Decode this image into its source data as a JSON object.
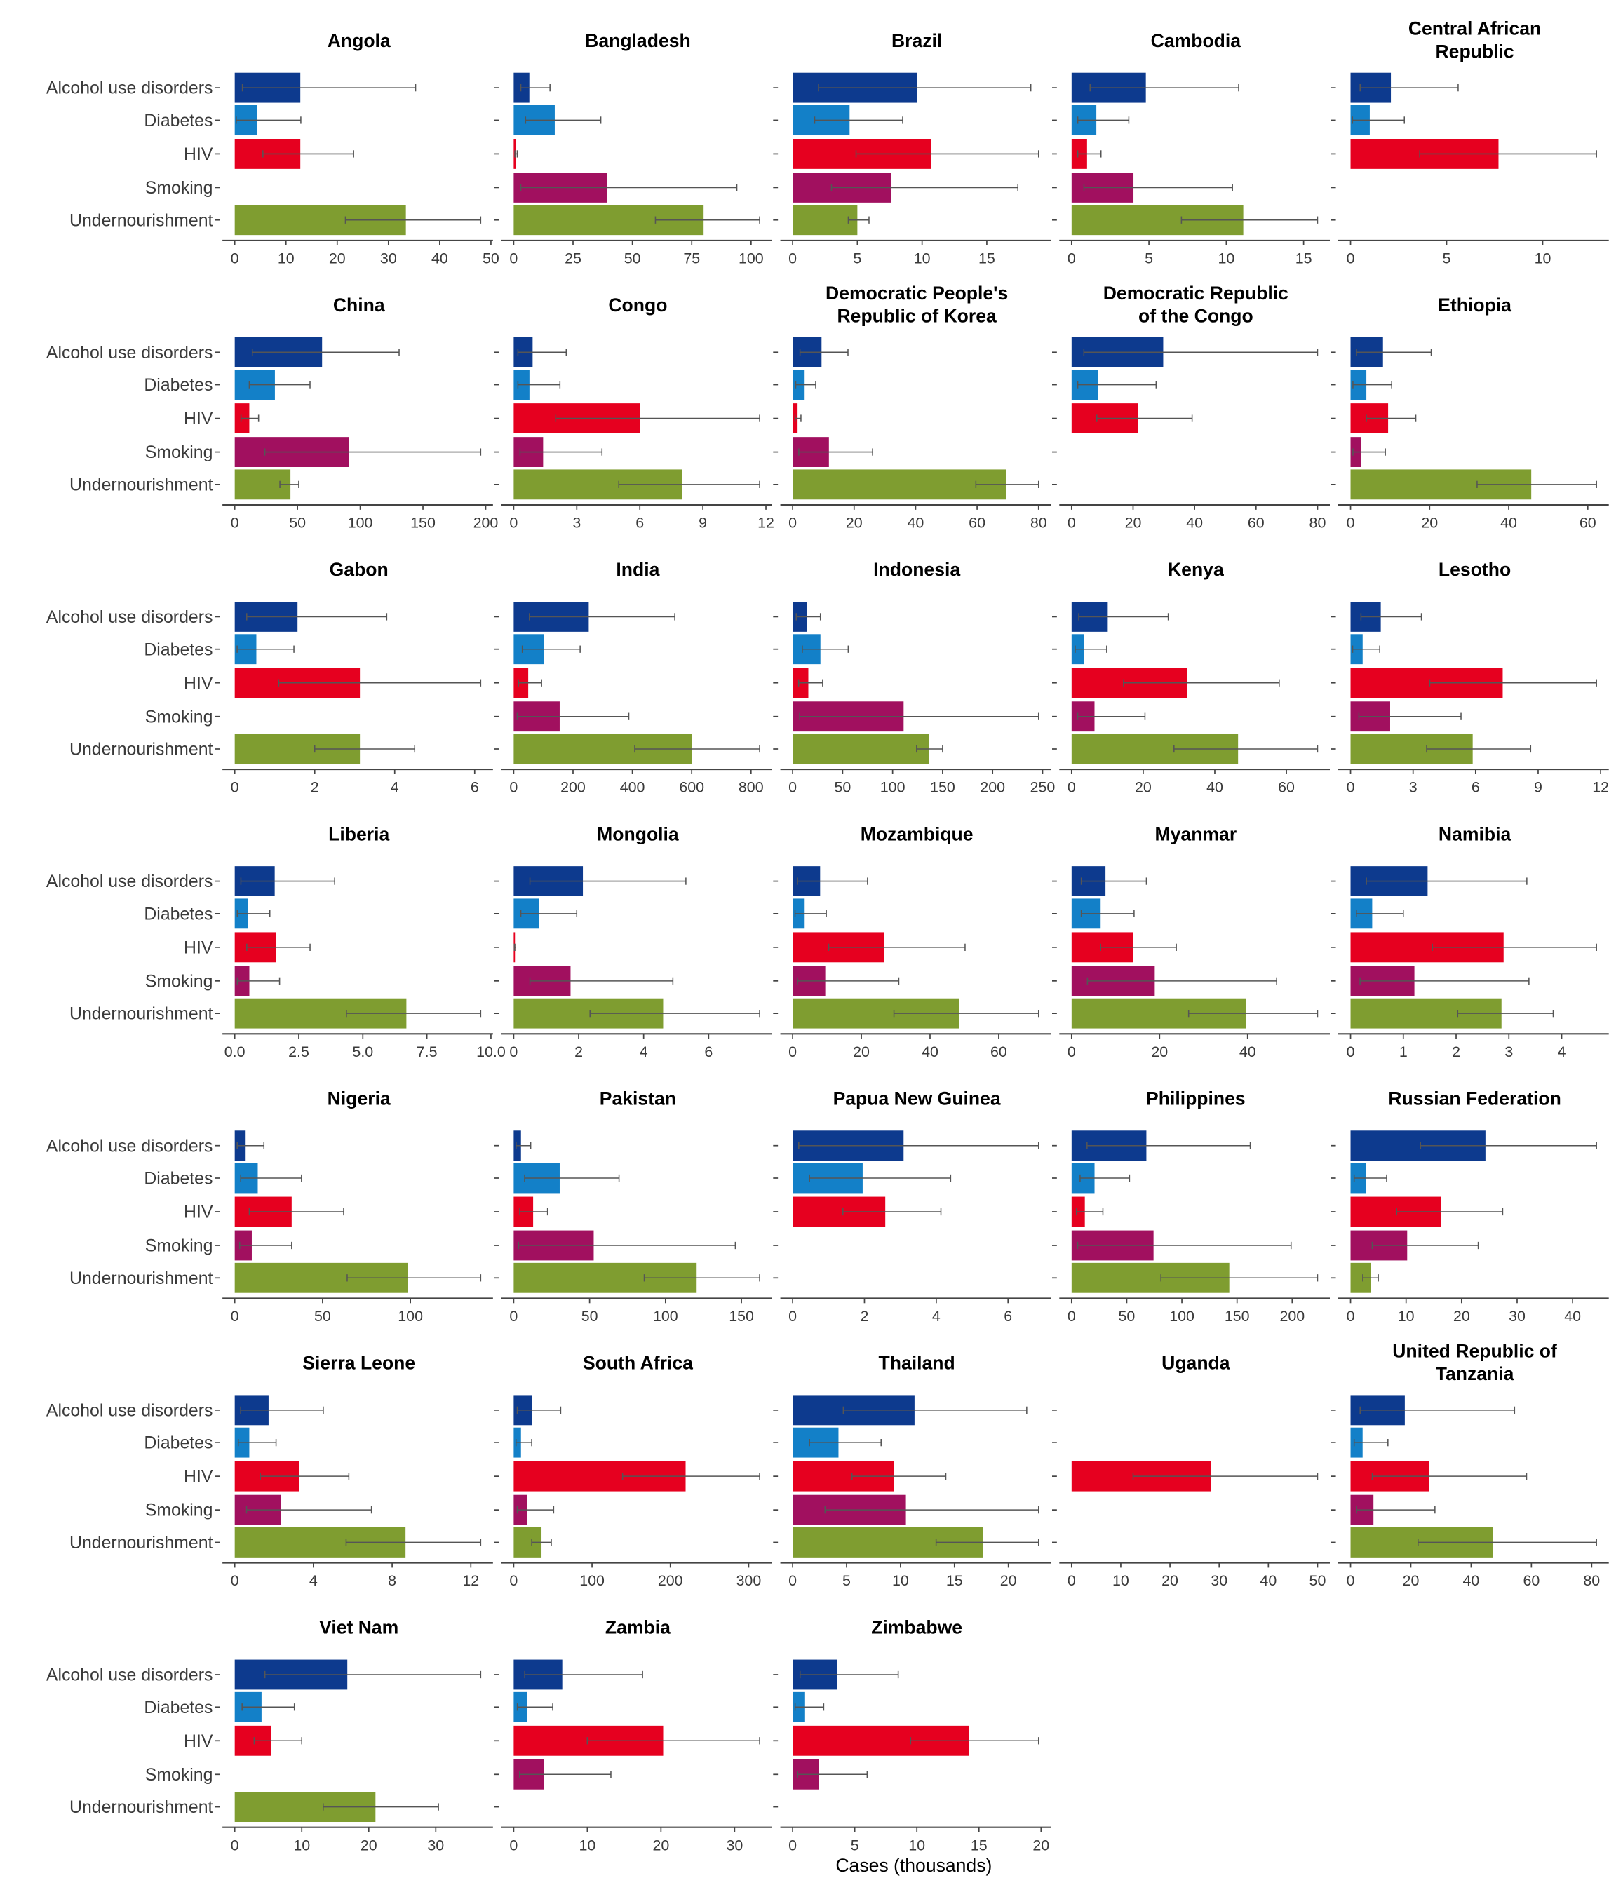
{
  "chart_data": {
    "type": "bar",
    "orientation": "horizontal",
    "layout": "small-multiples",
    "xlabel": "Cases (thousands)",
    "categories": [
      "Alcohol use disorders",
      "Diabetes",
      "HIV",
      "Smoking",
      "Undernourishment"
    ],
    "colors": [
      "#0d3a8e",
      "#1380c8",
      "#e6001f",
      "#a1105f",
      "#7f9d30"
    ],
    "error_bars": true,
    "grid": false,
    "panels": [
      {
        "title": "Angola",
        "ticks": [
          "0",
          "10",
          "20",
          "30",
          "40",
          "50"
        ],
        "values": [
          12.8,
          4.3,
          12.8,
          null,
          33.4
        ],
        "lo": [
          1.5,
          0.3,
          5.5,
          null,
          21.6
        ],
        "hi": [
          35.3,
          12.9,
          23.2,
          null,
          48
        ]
      },
      {
        "title": "Bangladesh",
        "ticks": [
          "0",
          "25",
          "50",
          "75",
          "100"
        ],
        "values": [
          6.6,
          17.3,
          1,
          39.3,
          80
        ],
        "lo": [
          3,
          5,
          0.5,
          3,
          59.7
        ],
        "hi": [
          15.3,
          36.7,
          1.5,
          94,
          103.6
        ]
      },
      {
        "title": "Brazil",
        "ticks": [
          "0",
          "5",
          "10",
          "15"
        ],
        "values": [
          9.6,
          4.4,
          10.7,
          7.6,
          5
        ],
        "lo": [
          2,
          1.7,
          4.9,
          3,
          4.3
        ],
        "hi": [
          18.4,
          8.5,
          19,
          17.4,
          5.9
        ]
      },
      {
        "title": "Cambodia",
        "ticks": [
          "0",
          "5",
          "10",
          "15"
        ],
        "values": [
          4.8,
          1.6,
          1,
          4,
          11.1
        ],
        "lo": [
          1.2,
          0.4,
          0.4,
          0.8,
          7.1
        ],
        "hi": [
          10.8,
          3.7,
          1.9,
          10.4,
          15.9
        ]
      },
      {
        "title": "Central African Republic",
        "ticks": [
          "0",
          "5",
          "10"
        ],
        "values": [
          2.1,
          1,
          7.7,
          null,
          null
        ],
        "lo": [
          0.5,
          0.1,
          3.6,
          null,
          null
        ],
        "hi": [
          5.6,
          2.8,
          12.8,
          null,
          null
        ]
      },
      {
        "title": "China",
        "ticks": [
          "0",
          "50",
          "100",
          "150",
          "200"
        ],
        "values": [
          69.6,
          32,
          11.6,
          90.8,
          44.4
        ],
        "lo": [
          14,
          11.6,
          5,
          24,
          36
        ],
        "hi": [
          131,
          60,
          19,
          196,
          51
        ]
      },
      {
        "title": "Congo",
        "ticks": [
          "0",
          "3",
          "6",
          "9",
          "12"
        ],
        "values": [
          0.9,
          0.75,
          6,
          1.4,
          8
        ],
        "lo": [
          0.2,
          0.2,
          2,
          0.3,
          5
        ],
        "hi": [
          2.5,
          2.2,
          11.7,
          4.2,
          11.7
        ]
      },
      {
        "title": "Democratic People's Republic of Korea",
        "ticks": [
          "0",
          "20",
          "40",
          "60",
          "80"
        ],
        "values": [
          9.4,
          3.9,
          1.6,
          11.8,
          69.4
        ],
        "lo": [
          2.4,
          1,
          0.8,
          2,
          59.6
        ],
        "hi": [
          18,
          7.5,
          2.7,
          26,
          80
        ]
      },
      {
        "title": "Democratic Republic of the Congo",
        "ticks": [
          "0",
          "20",
          "40",
          "60",
          "80"
        ],
        "values": [
          29.8,
          8.6,
          21.6,
          null,
          null
        ],
        "lo": [
          4,
          2,
          8.2,
          null,
          null
        ],
        "hi": [
          80,
          27.5,
          39.2,
          null,
          null
        ]
      },
      {
        "title": "Ethiopia",
        "ticks": [
          "0",
          "20",
          "40",
          "60"
        ],
        "values": [
          8.2,
          4,
          9.5,
          2.7,
          45.7
        ],
        "lo": [
          1.5,
          0.6,
          4,
          0.6,
          32
        ],
        "hi": [
          20.4,
          10.4,
          16.5,
          8.8,
          62.2
        ]
      },
      {
        "title": "Gabon",
        "ticks": [
          "0",
          "2",
          "4",
          "6"
        ],
        "values": [
          1.57,
          0.54,
          3.13,
          null,
          3.13
        ],
        "lo": [
          0.3,
          0.06,
          1.1,
          null,
          2
        ],
        "hi": [
          3.8,
          1.48,
          6.15,
          null,
          4.5
        ]
      },
      {
        "title": "India",
        "ticks": [
          "0",
          "200",
          "400",
          "600",
          "800"
        ],
        "values": [
          253,
          102,
          49,
          155,
          600
        ],
        "lo": [
          53,
          29,
          16,
          12,
          408
        ],
        "hi": [
          543,
          224,
          94,
          388,
          829
        ]
      },
      {
        "title": "Indonesia",
        "ticks": [
          "0",
          "50",
          "100",
          "150",
          "200",
          "250"
        ],
        "values": [
          14.5,
          27.8,
          15.7,
          111,
          136.5
        ],
        "lo": [
          3.6,
          9.7,
          6,
          7,
          124
        ],
        "hi": [
          27.8,
          55.6,
          30,
          246,
          150
        ]
      },
      {
        "title": "Kenya",
        "ticks": [
          "0",
          "20",
          "40",
          "60"
        ],
        "values": [
          10.1,
          3.4,
          32.3,
          6.4,
          46.5
        ],
        "lo": [
          2,
          1,
          14.5,
          1.7,
          28.6
        ],
        "hi": [
          27,
          9.8,
          58,
          20.5,
          68.7
        ]
      },
      {
        "title": "Lesotho",
        "ticks": [
          "0",
          "3",
          "6",
          "9",
          "12"
        ],
        "values": [
          1.45,
          0.58,
          7.3,
          1.9,
          5.86
        ],
        "lo": [
          0.5,
          0.1,
          3.8,
          0.4,
          3.65
        ],
        "hi": [
          3.4,
          1.4,
          11.8,
          5.3,
          8.64
        ]
      },
      {
        "title": "Liberia",
        "ticks": [
          "0.0",
          "2.5",
          "5.0",
          "7.5",
          "10.0"
        ],
        "values": [
          1.56,
          0.52,
          1.6,
          0.57,
          6.7
        ],
        "lo": [
          0.24,
          0.1,
          0.47,
          0.1,
          4.36
        ],
        "hi": [
          3.9,
          1.37,
          2.94,
          1.75,
          9.6
        ]
      },
      {
        "title": "Mongolia",
        "ticks": [
          "0",
          "2",
          "4",
          "6"
        ],
        "values": [
          2.13,
          0.78,
          0.04,
          1.75,
          4.6
        ],
        "lo": [
          0.5,
          0.22,
          0.02,
          0.5,
          2.35
        ],
        "hi": [
          5.3,
          1.94,
          0.06,
          4.9,
          7.57
        ]
      },
      {
        "title": "Mozambique",
        "ticks": [
          "0",
          "20",
          "40",
          "60"
        ],
        "values": [
          8,
          3.5,
          26.7,
          9.5,
          48.4
        ],
        "lo": [
          1.4,
          0.7,
          10.5,
          1.4,
          29.5
        ],
        "hi": [
          21.8,
          9.8,
          50.2,
          30.9,
          71.6
        ]
      },
      {
        "title": "Myanmar",
        "ticks": [
          "0",
          "20",
          "40"
        ],
        "values": [
          7.7,
          6.6,
          14,
          18.9,
          39.7
        ],
        "lo": [
          2.2,
          2.2,
          6.6,
          3.6,
          26.6
        ],
        "hi": [
          17,
          14.2,
          23.8,
          46.6,
          55.9
        ]
      },
      {
        "title": "Namibia",
        "ticks": [
          "0",
          "1",
          "2",
          "3",
          "4"
        ],
        "values": [
          1.46,
          0.41,
          2.9,
          1.21,
          2.86
        ],
        "lo": [
          0.3,
          0.11,
          1.55,
          0.18,
          2.03
        ],
        "hi": [
          3.34,
          1,
          4.66,
          3.38,
          3.84
        ]
      },
      {
        "title": "Nigeria",
        "ticks": [
          "0",
          "50",
          "100"
        ],
        "values": [
          6.2,
          13.1,
          32.4,
          9.7,
          98.6
        ],
        "lo": [
          1.4,
          3.4,
          8.3,
          2.8,
          64
        ],
        "hi": [
          16.6,
          38,
          62,
          32.4,
          140
        ]
      },
      {
        "title": "Pakistan",
        "ticks": [
          "0",
          "50",
          "100",
          "150"
        ],
        "values": [
          4.8,
          30.3,
          12.8,
          52.7,
          120.5
        ],
        "lo": [
          1.6,
          7.2,
          4,
          3.2,
          86
        ],
        "hi": [
          11.2,
          69.4,
          22.3,
          146,
          162
        ]
      },
      {
        "title": "Papua New Guinea",
        "ticks": [
          "0",
          "2",
          "4",
          "6"
        ],
        "values": [
          3.09,
          1.95,
          2.58,
          null,
          null
        ],
        "lo": [
          0.17,
          0.47,
          1.4,
          null,
          null
        ],
        "hi": [
          6.85,
          4.4,
          4.13,
          null,
          null
        ]
      },
      {
        "title": "Philippines",
        "ticks": [
          "0",
          "50",
          "100",
          "150",
          "200"
        ],
        "values": [
          67.8,
          20.8,
          12,
          74.3,
          143
        ],
        "lo": [
          14,
          7.7,
          4.4,
          5.5,
          81
        ],
        "hi": [
          162,
          52.5,
          28.4,
          199,
          223
        ]
      },
      {
        "title": "Russian Federation",
        "ticks": [
          "0",
          "10",
          "20",
          "30",
          "40"
        ],
        "values": [
          24.3,
          2.8,
          16.3,
          10.2,
          3.7
        ],
        "lo": [
          12.6,
          0.65,
          8.3,
          3.9,
          2.2
        ],
        "hi": [
          44.3,
          6.5,
          27.4,
          23,
          5
        ]
      },
      {
        "title": "Sierra Leone",
        "ticks": [
          "0",
          "4",
          "8",
          "12"
        ],
        "values": [
          1.72,
          0.74,
          3.26,
          2.34,
          8.68
        ],
        "lo": [
          0.3,
          0.18,
          1.3,
          0.6,
          5.66
        ],
        "hi": [
          4.5,
          2.1,
          5.8,
          6.95,
          12.5
        ]
      },
      {
        "title": "South Africa",
        "ticks": [
          "0",
          "100",
          "200",
          "300"
        ],
        "values": [
          23.2,
          9.3,
          219.5,
          17,
          35.5
        ],
        "lo": [
          4.6,
          3,
          139,
          4.6,
          23
        ],
        "hi": [
          60,
          23,
          314,
          51,
          48
        ]
      },
      {
        "title": "Thailand",
        "ticks": [
          "0",
          "5",
          "10",
          "15",
          "20"
        ],
        "values": [
          11.3,
          4.25,
          9.4,
          10.5,
          17.65
        ],
        "lo": [
          4.7,
          1.56,
          5.5,
          3,
          13.3
        ],
        "hi": [
          21.7,
          8.2,
          14.2,
          22.8,
          22.8
        ]
      },
      {
        "title": "Uganda",
        "ticks": [
          "0",
          "10",
          "20",
          "30",
          "40",
          "50"
        ],
        "values": [
          null,
          null,
          28.4,
          null,
          null
        ],
        "lo": [
          null,
          null,
          12.5,
          null,
          null
        ],
        "hi": [
          null,
          null,
          50,
          null,
          null
        ]
      },
      {
        "title": "United Republic of Tanzania",
        "ticks": [
          "0",
          "20",
          "40",
          "60",
          "80"
        ],
        "values": [
          18,
          4,
          26,
          7.6,
          47.2
        ],
        "lo": [
          3.2,
          1.2,
          7.2,
          2,
          22.4
        ],
        "hi": [
          54.4,
          12.4,
          58.4,
          28,
          81.6
        ]
      },
      {
        "title": "Viet Nam",
        "ticks": [
          "0",
          "10",
          "20",
          "30"
        ],
        "values": [
          16.8,
          4,
          5.4,
          null,
          21
        ],
        "lo": [
          4.5,
          1.1,
          2.9,
          null,
          13.2
        ],
        "hi": [
          36.7,
          8.9,
          10,
          null,
          30.4
        ]
      },
      {
        "title": "Zambia",
        "ticks": [
          "0",
          "10",
          "20",
          "30"
        ],
        "values": [
          6.6,
          1.8,
          20.3,
          4.1,
          null
        ],
        "lo": [
          1.5,
          0.5,
          10,
          0.8,
          null
        ],
        "hi": [
          17.5,
          5.3,
          33.4,
          13.2,
          null
        ]
      },
      {
        "title": "Zimbabwe",
        "ticks": [
          "0",
          "5",
          "10",
          "15",
          "20"
        ],
        "values": [
          3.6,
          1,
          14.2,
          2.1,
          null
        ],
        "lo": [
          0.6,
          0.2,
          9.5,
          0.4,
          null
        ],
        "hi": [
          8.5,
          2.5,
          19.8,
          6,
          null
        ]
      }
    ]
  }
}
